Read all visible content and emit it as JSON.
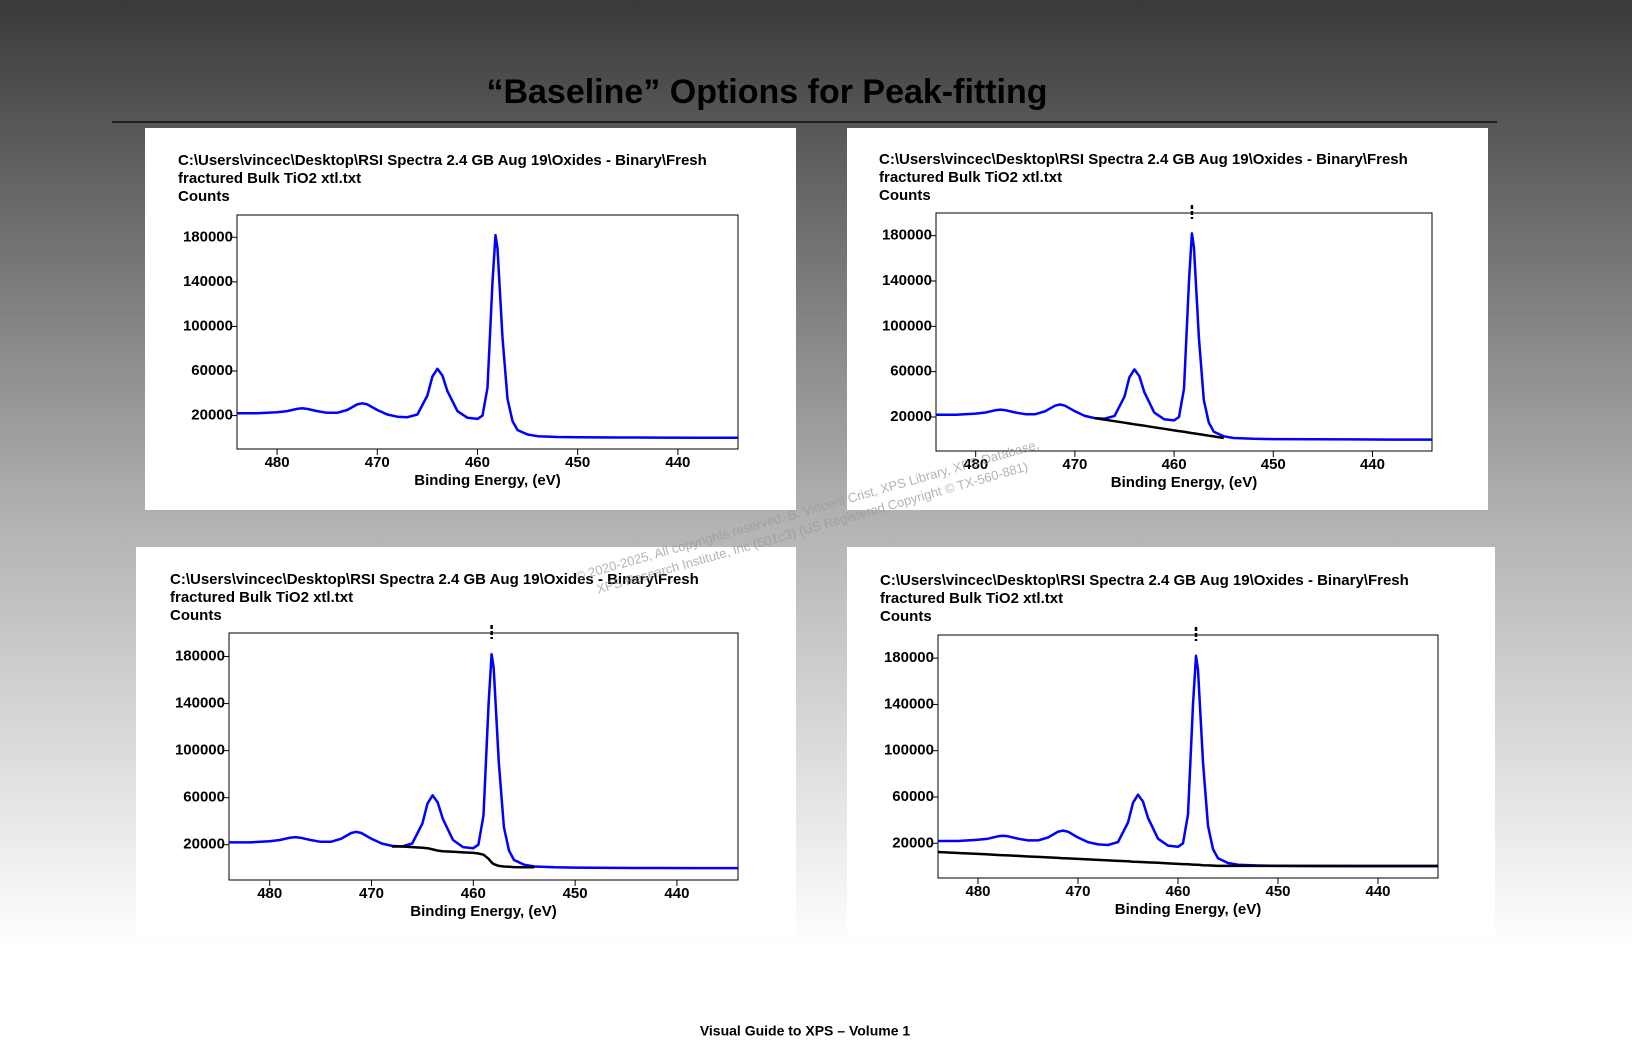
{
  "title": "“Baseline” Options for Peak-fitting",
  "footer": "Visual Guide to XPS – Volume 1",
  "watermark": [
    "© 2020-2025,  All copyrights reserved.   B. Vincent Crist,  XPS Library, XPS Database,",
    "XPS Research Institute, Inc (501c3)   (US Registered Copyright © TX-560-881)"
  ],
  "chart_data": [
    {
      "type": "line",
      "title": [
        "C:\\Users\\vincec\\Desktop\\RSI Spectra 2.4 GB Aug 19\\Oxides - Binary\\Fresh",
        "fractured Bulk TiO2 xtl.txt"
      ],
      "ylabel": "Counts",
      "xlabel": "Binding Energy, (eV)",
      "xlim": [
        484,
        434
      ],
      "ylim": [
        -10000,
        200000
      ],
      "xticks": [
        480,
        470,
        460,
        450,
        440
      ],
      "yticks": [
        20000,
        60000,
        100000,
        140000,
        180000
      ],
      "x": [
        484,
        482,
        480,
        479,
        478,
        477.5,
        477,
        476,
        475,
        474,
        473,
        472,
        471.5,
        471,
        470,
        469,
        468,
        467,
        466,
        465,
        464.5,
        464,
        463.5,
        463,
        462,
        461,
        460,
        459.5,
        459,
        458.5,
        458.2,
        458,
        457.5,
        457,
        456.5,
        456,
        455,
        454,
        452,
        450,
        446,
        442,
        438,
        434
      ],
      "series": [
        {
          "color": "#0000ff",
          "values": [
            22000,
            22000,
            23000,
            24000,
            26000,
            26500,
            26000,
            24000,
            22500,
            22500,
            25000,
            30000,
            31000,
            30000,
            25000,
            21000,
            19000,
            18500,
            21000,
            38000,
            55000,
            62000,
            56000,
            42000,
            24000,
            18000,
            17000,
            20000,
            45000,
            140000,
            182000,
            170000,
            90000,
            35000,
            15000,
            7000,
            3000,
            1500,
            800,
            500,
            300,
            200,
            100,
            100
          ]
        }
      ]
    },
    {
      "type": "line",
      "title": [
        "C:\\Users\\vincec\\Desktop\\RSI Spectra 2.4 GB Aug 19\\Oxides - Binary\\Fresh",
        "fractured Bulk TiO2 xtl.txt"
      ],
      "ylabel": "Counts",
      "xlabel": "Binding Energy, (eV)",
      "xlim": [
        484,
        434
      ],
      "ylim": [
        -10000,
        200000
      ],
      "xticks": [
        480,
        470,
        460,
        450,
        440
      ],
      "yticks": [
        20000,
        60000,
        100000,
        140000,
        180000
      ],
      "x": [
        484,
        482,
        480,
        479,
        478,
        477.5,
        477,
        476,
        475,
        474,
        473,
        472,
        471.5,
        471,
        470,
        469,
        468,
        467,
        466,
        465,
        464.5,
        464,
        463.5,
        463,
        462,
        461,
        460,
        459.5,
        459,
        458.5,
        458.2,
        458,
        457.5,
        457,
        456.5,
        456,
        455,
        454,
        452,
        450,
        446,
        442,
        438,
        434
      ],
      "peak_marker": 458.2,
      "series": [
        {
          "color": "#0000ff",
          "values": [
            22000,
            22000,
            23000,
            24000,
            26000,
            26500,
            26000,
            24000,
            22500,
            22500,
            25000,
            30000,
            31000,
            30000,
            25000,
            21000,
            19000,
            18500,
            21000,
            38000,
            55000,
            62000,
            56000,
            42000,
            24000,
            18000,
            17000,
            20000,
            45000,
            140000,
            182000,
            170000,
            90000,
            35000,
            15000,
            7000,
            3000,
            1500,
            800,
            500,
            300,
            200,
            100,
            100
          ]
        },
        {
          "color": "#000000",
          "values": [
            null,
            null,
            null,
            null,
            null,
            null,
            null,
            null,
            null,
            null,
            null,
            null,
            null,
            null,
            null,
            null,
            19000,
            17700,
            16300,
            15000,
            14300,
            13600,
            12900,
            12300,
            10900,
            9600,
            8200,
            7600,
            6900,
            6200,
            5800,
            5500,
            4900,
            4200,
            3500,
            2900,
            1500,
            null,
            null,
            null,
            null,
            null,
            null,
            null
          ]
        }
      ]
    },
    {
      "type": "line",
      "title": [
        "C:\\Users\\vincec\\Desktop\\RSI Spectra 2.4 GB Aug 19\\Oxides - Binary\\Fresh",
        "fractured Bulk TiO2 xtl.txt"
      ],
      "ylabel": "Counts",
      "xlabel": "Binding Energy, (eV)",
      "xlim": [
        484,
        434
      ],
      "ylim": [
        -10000,
        200000
      ],
      "xticks": [
        480,
        470,
        460,
        450,
        440
      ],
      "yticks": [
        20000,
        60000,
        100000,
        140000,
        180000
      ],
      "x": [
        484,
        482,
        480,
        479,
        478,
        477.5,
        477,
        476,
        475,
        474,
        473,
        472,
        471.5,
        471,
        470,
        469,
        468,
        467,
        466,
        465,
        464.5,
        464,
        463.5,
        463,
        462,
        461,
        460,
        459.5,
        459,
        458.5,
        458.2,
        458,
        457.5,
        457,
        456.5,
        456,
        455,
        454,
        452,
        450,
        446,
        442,
        438,
        434
      ],
      "peak_marker": 458.2,
      "series": [
        {
          "color": "#0000ff",
          "values": [
            22000,
            22000,
            23000,
            24000,
            26000,
            26500,
            26000,
            24000,
            22500,
            22500,
            25000,
            30000,
            31000,
            30000,
            25000,
            21000,
            19000,
            18500,
            21000,
            38000,
            55000,
            62000,
            56000,
            42000,
            24000,
            18000,
            17000,
            20000,
            45000,
            140000,
            182000,
            170000,
            90000,
            35000,
            15000,
            7000,
            3000,
            1500,
            800,
            500,
            300,
            200,
            100,
            100
          ]
        },
        {
          "color": "#000000",
          "values": [
            null,
            null,
            null,
            null,
            null,
            null,
            null,
            null,
            null,
            null,
            null,
            null,
            null,
            null,
            null,
            null,
            18500,
            18500,
            18000,
            17500,
            17000,
            16000,
            15000,
            14500,
            14000,
            13500,
            13000,
            12500,
            11500,
            8000,
            5000,
            3500,
            2000,
            1500,
            1200,
            1000,
            800,
            800,
            null,
            null,
            null,
            null,
            null,
            null
          ]
        }
      ]
    },
    {
      "type": "line",
      "title": [
        "C:\\Users\\vincec\\Desktop\\RSI Spectra 2.4 GB Aug 19\\Oxides - Binary\\Fresh",
        "fractured Bulk TiO2 xtl.txt"
      ],
      "ylabel": "Counts",
      "xlabel": "Binding Energy, (eV)",
      "xlim": [
        484,
        434
      ],
      "ylim": [
        -10000,
        200000
      ],
      "xticks": [
        480,
        470,
        460,
        450,
        440
      ],
      "yticks": [
        20000,
        60000,
        100000,
        140000,
        180000
      ],
      "x": [
        484,
        482,
        480,
        479,
        478,
        477.5,
        477,
        476,
        475,
        474,
        473,
        472,
        471.5,
        471,
        470,
        469,
        468,
        467,
        466,
        465,
        464.5,
        464,
        463.5,
        463,
        462,
        461,
        460,
        459.5,
        459,
        458.5,
        458.2,
        458,
        457.5,
        457,
        456.5,
        456,
        455,
        454,
        452,
        450,
        446,
        442,
        438,
        434
      ],
      "peak_marker": 458.2,
      "series": [
        {
          "color": "#0000ff",
          "values": [
            22000,
            22000,
            23000,
            24000,
            26000,
            26500,
            26000,
            24000,
            22500,
            22500,
            25000,
            30000,
            31000,
            30000,
            25000,
            21000,
            19000,
            18500,
            21000,
            38000,
            55000,
            62000,
            56000,
            42000,
            24000,
            18000,
            17000,
            20000,
            45000,
            140000,
            182000,
            170000,
            90000,
            35000,
            15000,
            7000,
            3000,
            1500,
            800,
            500,
            300,
            200,
            100,
            100
          ]
        },
        {
          "color": "#000000",
          "values": [
            12500,
            11600,
            10800,
            10400,
            9900,
            9700,
            9500,
            9100,
            8600,
            8200,
            7800,
            7400,
            7100,
            6900,
            6500,
            6100,
            5600,
            5200,
            4800,
            4400,
            4100,
            3900,
            3700,
            3500,
            3100,
            2600,
            2200,
            2000,
            1800,
            1600,
            1400,
            1400,
            1100,
            900,
            700,
            500,
            500,
            500,
            500,
            500,
            500,
            500,
            500,
            500
          ]
        }
      ]
    }
  ]
}
